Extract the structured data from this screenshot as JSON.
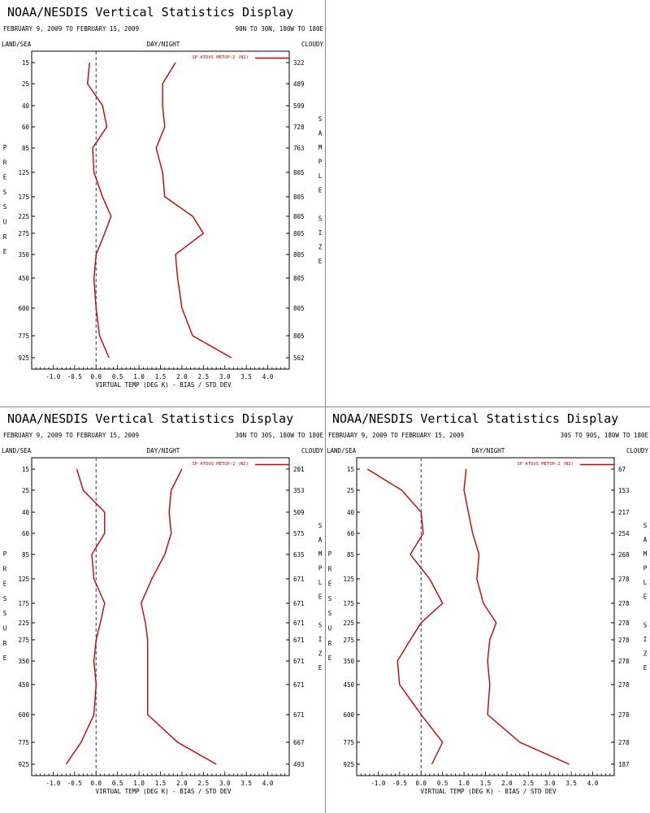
{
  "common": {
    "title": "NOAA/NESDIS Vertical Statistics Display",
    "date_range": "FEBRUARY 9, 2009 TO FEBRUARY 15, 2009",
    "land_sea": "LAND/SEA",
    "day_night": "DAY/NIGHT",
    "cloudy": "CLOUDY",
    "y_axis_label": "PRESSURE",
    "right_axis_label": "SAMPLE SIZE",
    "legend": "SP ATOVS METOP-2 (N2)",
    "series_color": "#cc0000",
    "zero_line_color": "#2233aa"
  },
  "chart_data": [
    {
      "type": "line",
      "region": "90N TO 30N, 180W TO 180E",
      "pressure_levels": [
        "15",
        "25",
        "40",
        "60",
        "85",
        "125",
        "175",
        "225",
        "275",
        "350",
        "450",
        "600",
        "775",
        "925"
      ],
      "sample_size": [
        "322",
        "489",
        "599",
        "728",
        "763",
        "805",
        "805",
        "805",
        "805",
        "805",
        "805",
        "805",
        "805",
        "562"
      ],
      "xlabel": "VIRTUAL TEMP (DEG K) - BIAS / STD DEV",
      "xticks": [
        "-1.0",
        "-0.5",
        "0.0",
        "0.5",
        "1.0",
        "1.5",
        "2.0",
        "2.5",
        "3.0",
        "3.5",
        "4.0"
      ],
      "xlim": [
        -1.5,
        4.5
      ],
      "bias": [
        -0.15,
        -0.2,
        0.15,
        0.25,
        -0.08,
        -0.05,
        0.15,
        0.35,
        0.2,
        0.0,
        -0.05,
        0.0,
        0.08,
        0.3
      ],
      "std_dev": [
        1.85,
        1.55,
        1.55,
        1.6,
        1.4,
        1.55,
        1.6,
        2.25,
        2.5,
        1.85,
        1.9,
        2.0,
        2.25,
        3.15
      ]
    },
    {
      "type": "line",
      "region": "30N TO 30S, 180W TO 180E",
      "pressure_levels": [
        "15",
        "25",
        "40",
        "60",
        "85",
        "125",
        "175",
        "225",
        "275",
        "350",
        "450",
        "600",
        "775",
        "925"
      ],
      "sample_size": [
        "201",
        "353",
        "509",
        "575",
        "635",
        "671",
        "671",
        "671",
        "671",
        "671",
        "671",
        "671",
        "667",
        "493"
      ],
      "xlabel": "VIRTUAL TEMP (DEG K) - BIAS / STD DEV",
      "xticks": [
        "-1.0",
        "-0.5",
        "0.0",
        "0.5",
        "1.0",
        "1.5",
        "2.0",
        "2.5",
        "3.0",
        "3.5",
        "4.0"
      ],
      "xlim": [
        -1.5,
        4.5
      ],
      "bias": [
        -0.45,
        -0.3,
        0.2,
        0.2,
        -0.1,
        -0.05,
        0.2,
        0.1,
        0.0,
        -0.05,
        0.0,
        -0.05,
        -0.35,
        -0.7
      ],
      "std_dev": [
        2.0,
        1.75,
        1.7,
        1.75,
        1.6,
        1.3,
        1.05,
        1.15,
        1.2,
        1.2,
        1.2,
        1.2,
        1.9,
        2.8
      ]
    },
    {
      "type": "line",
      "region": "30S TO 90S, 180W TO 180E",
      "pressure_levels": [
        "15",
        "25",
        "40",
        "60",
        "85",
        "125",
        "175",
        "225",
        "275",
        "350",
        "450",
        "600",
        "775",
        "925"
      ],
      "sample_size": [
        "67",
        "153",
        "217",
        "254",
        "268",
        "278",
        "278",
        "278",
        "278",
        "278",
        "278",
        "278",
        "278",
        "187"
      ],
      "xlabel": "VIRTUAL TEMP (DEG K) - BIAS / STD DEV",
      "xticks": [
        "-1.0",
        "-0.5",
        "0.0",
        "0.5",
        "1.0",
        "1.5",
        "2.0",
        "2.5",
        "3.0",
        "3.5",
        "4.0"
      ],
      "xlim": [
        -1.5,
        4.5
      ],
      "bias": [
        -1.25,
        -0.45,
        0.0,
        0.05,
        -0.25,
        0.2,
        0.5,
        0.0,
        -0.25,
        -0.55,
        -0.5,
        0.0,
        0.5,
        0.25
      ],
      "std_dev": [
        1.05,
        1.0,
        1.1,
        1.2,
        1.35,
        1.3,
        1.45,
        1.75,
        1.6,
        1.55,
        1.6,
        1.55,
        2.3,
        3.45
      ]
    }
  ]
}
